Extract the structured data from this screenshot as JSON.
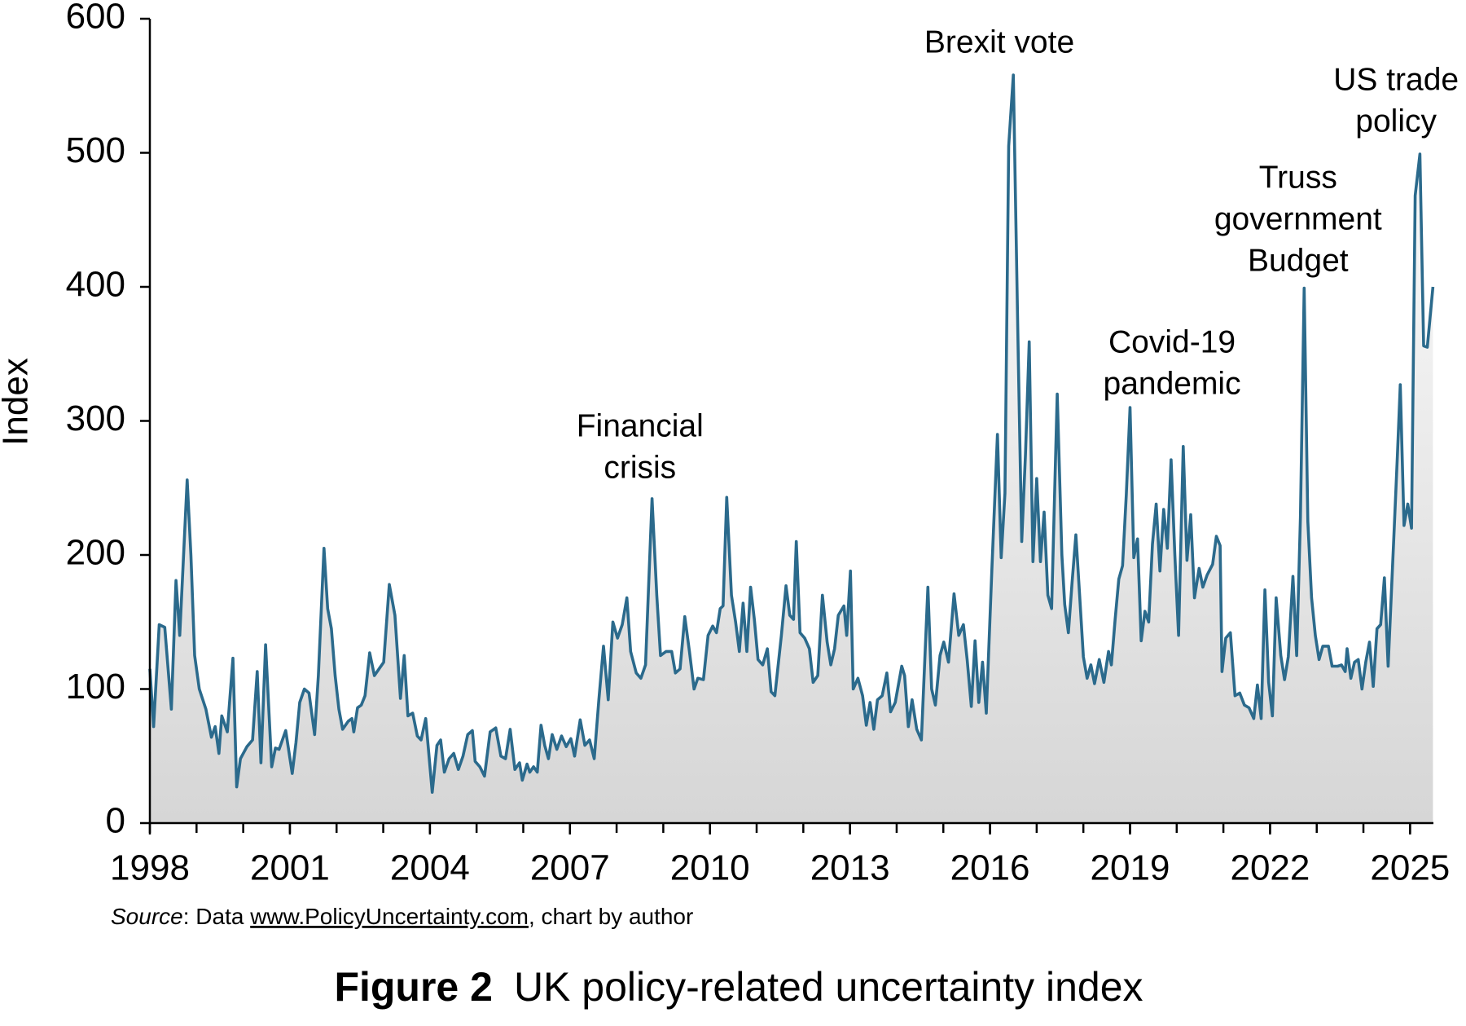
{
  "chart_data": {
    "type": "area",
    "title": [
      "Figure 2",
      "UK policy-related uncertainty index"
    ],
    "ylabel": "Index",
    "source": [
      "Source",
      ": Data ",
      "www.PolicyUncertainty.com",
      ", chart by author"
    ],
    "color": "#2b6a8c",
    "xlim": [
      1998,
      2025.5
    ],
    "xticks": [
      1998,
      2001,
      2004,
      2007,
      2010,
      2013,
      2016,
      2019,
      2022,
      2025
    ],
    "xminor": [
      1998,
      1999,
      2000,
      2001,
      2002,
      2003,
      2004,
      2005,
      2006,
      2007,
      2008,
      2009,
      2010,
      2011,
      2012,
      2013,
      2014,
      2015,
      2016,
      2017,
      2018,
      2019,
      2020,
      2021,
      2022,
      2023,
      2024,
      2025
    ],
    "ylim": [
      0,
      600
    ],
    "yticks": [
      0,
      100,
      200,
      300,
      400,
      500,
      600
    ],
    "annotations": [
      {
        "text": [
          "Financial",
          "crisis"
        ],
        "x": 2008.5
      },
      {
        "text": [
          "Brexit vote"
        ],
        "x": 2016.2
      },
      {
        "text": [
          "Covid-19",
          "pandemic"
        ],
        "x": 2019.9
      },
      {
        "text": [
          "Truss",
          "government",
          "Budget"
        ],
        "x": 2022.6
      },
      {
        "text": [
          "US trade",
          "policy"
        ],
        "x": 2024.7
      }
    ],
    "x": [
      1998.0,
      1998.08,
      1998.2,
      1998.32,
      1998.46,
      1998.56,
      1998.64,
      1998.8,
      1998.88,
      1998.96,
      1999.06,
      1999.2,
      1999.32,
      1999.4,
      1999.48,
      1999.54,
      1999.66,
      1999.78,
      1999.86,
      1999.94,
      2000.08,
      2000.2,
      2000.3,
      2000.38,
      2000.48,
      2000.61,
      2000.69,
      2000.77,
      2000.91,
      2001.05,
      2001.13,
      2001.21,
      2001.31,
      2001.41,
      2001.53,
      2001.61,
      2001.73,
      2001.81,
      2001.89,
      2001.97,
      2002.05,
      2002.13,
      2002.25,
      2002.33,
      2002.37,
      2002.45,
      2002.53,
      2002.61,
      2002.71,
      2002.81,
      2002.93,
      2003.01,
      2003.13,
      2003.25,
      2003.37,
      2003.45,
      2003.53,
      2003.63,
      2003.73,
      2003.81,
      2003.91,
      2004.05,
      2004.15,
      2004.23,
      2004.31,
      2004.41,
      2004.51,
      2004.61,
      2004.71,
      2004.81,
      2004.91,
      2004.97,
      2005.07,
      2005.17,
      2005.29,
      2005.41,
      2005.52,
      2005.62,
      2005.72,
      2005.82,
      2005.92,
      2005.98,
      2006.08,
      2006.14,
      2006.22,
      2006.3,
      2006.38,
      2006.46,
      2006.54,
      2006.62,
      2006.72,
      2006.82,
      2006.92,
      2007.02,
      2007.1,
      2007.22,
      2007.32,
      2007.42,
      2007.52,
      2007.62,
      2007.72,
      2007.82,
      2007.92,
      2008.02,
      2008.12,
      2008.22,
      2008.3,
      2008.42,
      2008.52,
      2008.62,
      2008.76,
      2008.86,
      2008.94,
      2009.06,
      2009.18,
      2009.26,
      2009.36,
      2009.46,
      2009.56,
      2009.66,
      2009.74,
      2009.86,
      2009.96,
      2010.06,
      2010.14,
      2010.22,
      2010.28,
      2010.36,
      2010.46,
      2010.55,
      2010.63,
      2010.71,
      2010.79,
      2010.87,
      2010.95,
      2011.03,
      2011.13,
      2011.23,
      2011.31,
      2011.39,
      2011.53,
      2011.63,
      2011.71,
      2011.79,
      2011.85,
      2011.93,
      2012.03,
      2012.13,
      2012.21,
      2012.31,
      2012.41,
      2012.51,
      2012.59,
      2012.67,
      2012.75,
      2012.87,
      2012.93,
      2013.01,
      2013.07,
      2013.17,
      2013.27,
      2013.35,
      2013.43,
      2013.51,
      2013.59,
      2013.69,
      2013.79,
      2013.87,
      2013.97,
      2014.11,
      2014.17,
      2014.25,
      2014.33,
      2014.43,
      2014.53,
      2014.67,
      2014.75,
      2014.83,
      2014.93,
      2015.01,
      2015.11,
      2015.23,
      2015.33,
      2015.43,
      2015.51,
      2015.6,
      2015.68,
      2015.76,
      2015.84,
      2015.92,
      2016.04,
      2016.16,
      2016.24,
      2016.32,
      2016.4,
      2016.5,
      2016.6,
      2016.68,
      2016.76,
      2016.84,
      2016.92,
      2017.0,
      2017.08,
      2017.16,
      2017.24,
      2017.32,
      2017.44,
      2017.54,
      2017.6,
      2017.68,
      2017.76,
      2017.84,
      2017.92,
      2018.0,
      2018.08,
      2018.16,
      2018.24,
      2018.34,
      2018.44,
      2018.54,
      2018.6,
      2018.68,
      2018.76,
      2018.84,
      2018.92,
      2019.0,
      2019.08,
      2019.16,
      2019.24,
      2019.32,
      2019.4,
      2019.48,
      2019.56,
      2019.64,
      2019.72,
      2019.8,
      2019.88,
      2019.96,
      2020.04,
      2020.14,
      2020.22,
      2020.3,
      2020.38,
      2020.48,
      2020.56,
      2020.65,
      2020.77,
      2020.85,
      2020.93,
      2020.97,
      2021.05,
      2021.15,
      2021.25,
      2021.35,
      2021.45,
      2021.55,
      2021.65,
      2021.73,
      2021.81,
      2021.89,
      2021.97,
      2022.05,
      2022.13,
      2022.23,
      2022.31,
      2022.39,
      2022.49,
      2022.57,
      2022.65,
      2022.73,
      2022.81,
      2022.89,
      2022.97,
      2023.05,
      2023.13,
      2023.25,
      2023.33,
      2023.45,
      2023.53,
      2023.61,
      2023.65,
      2023.73,
      2023.81,
      2023.89,
      2023.97,
      2024.05,
      2024.13,
      2024.21,
      2024.29,
      2024.37,
      2024.45,
      2024.53,
      2024.65,
      2024.73,
      2024.79,
      2024.87,
      2024.95,
      2025.03,
      2025.11,
      2025.21,
      2025.29,
      2025.37,
      2025.49
    ],
    "values": [
      115,
      72,
      148,
      146,
      85,
      181,
      140,
      256,
      200,
      125,
      100,
      85,
      64,
      72,
      52,
      80,
      68,
      123,
      27,
      48,
      57,
      62,
      113,
      45,
      133,
      42,
      56,
      55,
      69,
      37,
      60,
      90,
      100,
      97,
      66,
      110,
      205,
      160,
      145,
      110,
      85,
      70,
      76,
      78,
      68,
      86,
      88,
      95,
      127,
      110,
      116,
      120,
      178,
      155,
      93,
      125,
      80,
      82,
      65,
      62,
      78,
      23,
      58,
      62,
      38,
      48,
      52,
      40,
      50,
      66,
      69,
      46,
      42,
      35,
      68,
      71,
      50,
      48,
      70,
      40,
      45,
      32,
      44,
      38,
      42,
      38,
      73,
      58,
      48,
      66,
      55,
      65,
      57,
      63,
      50,
      77,
      58,
      62,
      48,
      92,
      132,
      92,
      150,
      138,
      148,
      168,
      128,
      112,
      108,
      118,
      242,
      170,
      125,
      128,
      128,
      112,
      115,
      154,
      128,
      100,
      108,
      107,
      140,
      147,
      142,
      160,
      162,
      243,
      170,
      150,
      128,
      164,
      128,
      176,
      152,
      122,
      118,
      130,
      98,
      95,
      140,
      177,
      155,
      152,
      210,
      142,
      138,
      130,
      105,
      110,
      170,
      135,
      118,
      130,
      155,
      162,
      140,
      188,
      100,
      108,
      95,
      73,
      90,
      70,
      92,
      95,
      112,
      83,
      90,
      117,
      110,
      72,
      92,
      70,
      62,
      176,
      100,
      88,
      125,
      135,
      120,
      171,
      140,
      148,
      122,
      87,
      136,
      90,
      120,
      82,
      190,
      290,
      198,
      246,
      505,
      558,
      360,
      210,
      275,
      359,
      195,
      257,
      195,
      232,
      170,
      160,
      320,
      200,
      163,
      142,
      180,
      215,
      170,
      124,
      108,
      118,
      104,
      122,
      105,
      128,
      118,
      152,
      182,
      192,
      245,
      310,
      198,
      212,
      136,
      158,
      150,
      208,
      238,
      188,
      234,
      205,
      271,
      200,
      140,
      281,
      196,
      230,
      168,
      190,
      176,
      185,
      193,
      214,
      207,
      113,
      138,
      142,
      95,
      97,
      88,
      86,
      78,
      103,
      78,
      174,
      105,
      80,
      168,
      125,
      107,
      124,
      184,
      125,
      228,
      399,
      225,
      168,
      140,
      122,
      132,
      132,
      117,
      117,
      118,
      113,
      130,
      108,
      120,
      122,
      100,
      120,
      135,
      102,
      145,
      148,
      183,
      117,
      212,
      276,
      327,
      222,
      238,
      220,
      468,
      499,
      356,
      355,
      400
    ]
  }
}
